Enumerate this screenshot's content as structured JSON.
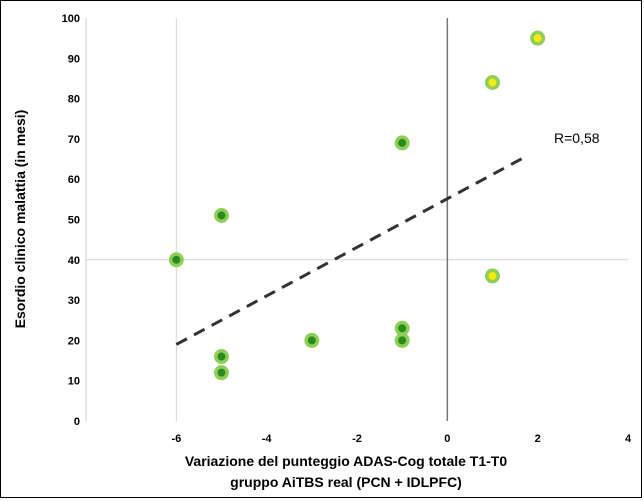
{
  "chart_data": {
    "type": "scatter",
    "title": "",
    "ylabel": "Esordio clinico malattia (in mesi)",
    "xlabel_line1": "Variazione del punteggio ADAS-Cog totale T1-T0",
    "xlabel_line2": "gruppo AiTBS real (PCN + IDLPFC)",
    "xlim": [
      -8,
      4
    ],
    "ylim": [
      0,
      100
    ],
    "x_ticks": [
      -6,
      -4,
      -2,
      0,
      2,
      4
    ],
    "y_ticks": [
      0,
      10,
      20,
      30,
      40,
      50,
      60,
      70,
      80,
      90,
      100
    ],
    "grid": "vertical at x=-6, horizontal at y=40",
    "series": [
      {
        "color": "#2a8a1e",
        "points": [
          {
            "x": -6,
            "y": 40
          },
          {
            "x": -5,
            "y": 51
          },
          {
            "x": -5,
            "y": 16
          },
          {
            "x": -5,
            "y": 12
          },
          {
            "x": -3,
            "y": 20
          },
          {
            "x": -1,
            "y": 69
          },
          {
            "x": -1,
            "y": 23
          },
          {
            "x": -1,
            "y": 20
          }
        ]
      },
      {
        "color": "#f5ea0f",
        "points": [
          {
            "x": 1,
            "y": 84
          },
          {
            "x": 1,
            "y": 36
          },
          {
            "x": 2,
            "y": 95
          }
        ]
      }
    ],
    "trendline": {
      "x1": -6,
      "y1": 19,
      "x2": 1.8,
      "y2": 66,
      "style": "dashed"
    },
    "annotation": "R=0,58",
    "zero_line_x": 0
  }
}
